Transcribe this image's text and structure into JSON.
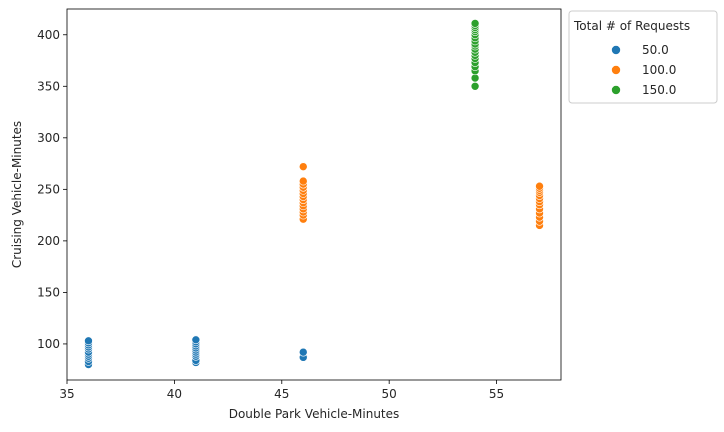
{
  "chart_data": {
    "type": "scatter",
    "xlabel": "Double Park Vehicle-Minutes",
    "ylabel": "Cruising Vehicle-Minutes",
    "xlim": [
      35,
      58
    ],
    "ylim": [
      65,
      425
    ],
    "xticks": [
      35,
      40,
      45,
      50,
      55
    ],
    "yticks": [
      100,
      150,
      200,
      250,
      300,
      350,
      400
    ],
    "legend": {
      "title": "Total # of Requests",
      "placement": "outside-top-right"
    },
    "series": [
      {
        "name": "50.0",
        "color": "#1f77b4",
        "points": [
          [
            36,
            80
          ],
          [
            36,
            83
          ],
          [
            36,
            86
          ],
          [
            36,
            88
          ],
          [
            36,
            90
          ],
          [
            36,
            92
          ],
          [
            36,
            95
          ],
          [
            36,
            97
          ],
          [
            36,
            99
          ],
          [
            36,
            101
          ],
          [
            36,
            103
          ],
          [
            41,
            82
          ],
          [
            41,
            84
          ],
          [
            41,
            88
          ],
          [
            41,
            90
          ],
          [
            41,
            92
          ],
          [
            41,
            94
          ],
          [
            41,
            96
          ],
          [
            41,
            98
          ],
          [
            41,
            100
          ],
          [
            41,
            102
          ],
          [
            41,
            104
          ],
          [
            46,
            87
          ],
          [
            46,
            92
          ]
        ]
      },
      {
        "name": "100.0",
        "color": "#ff7f0e",
        "points": [
          [
            46,
            221
          ],
          [
            46,
            225
          ],
          [
            46,
            228
          ],
          [
            46,
            231
          ],
          [
            46,
            234
          ],
          [
            46,
            237
          ],
          [
            46,
            240
          ],
          [
            46,
            243
          ],
          [
            46,
            246
          ],
          [
            46,
            249
          ],
          [
            46,
            252
          ],
          [
            46,
            255
          ],
          [
            46,
            258
          ],
          [
            46,
            272
          ],
          [
            57,
            215
          ],
          [
            57,
            219
          ],
          [
            57,
            223
          ],
          [
            57,
            227
          ],
          [
            57,
            231
          ],
          [
            57,
            235
          ],
          [
            57,
            238
          ],
          [
            57,
            241
          ],
          [
            57,
            244
          ],
          [
            57,
            247
          ],
          [
            57,
            249
          ],
          [
            57,
            251
          ],
          [
            57,
            253
          ]
        ]
      },
      {
        "name": "150.0",
        "color": "#2ca02c",
        "points": [
          [
            54,
            350
          ],
          [
            54,
            358
          ],
          [
            54,
            365
          ],
          [
            54,
            369
          ],
          [
            54,
            373
          ],
          [
            54,
            377
          ],
          [
            54,
            380
          ],
          [
            54,
            383
          ],
          [
            54,
            386
          ],
          [
            54,
            389
          ],
          [
            54,
            391
          ],
          [
            54,
            394
          ],
          [
            54,
            397
          ],
          [
            54,
            400
          ],
          [
            54,
            403
          ],
          [
            54,
            405
          ],
          [
            54,
            407
          ],
          [
            54,
            409
          ],
          [
            54,
            411
          ]
        ]
      }
    ]
  }
}
